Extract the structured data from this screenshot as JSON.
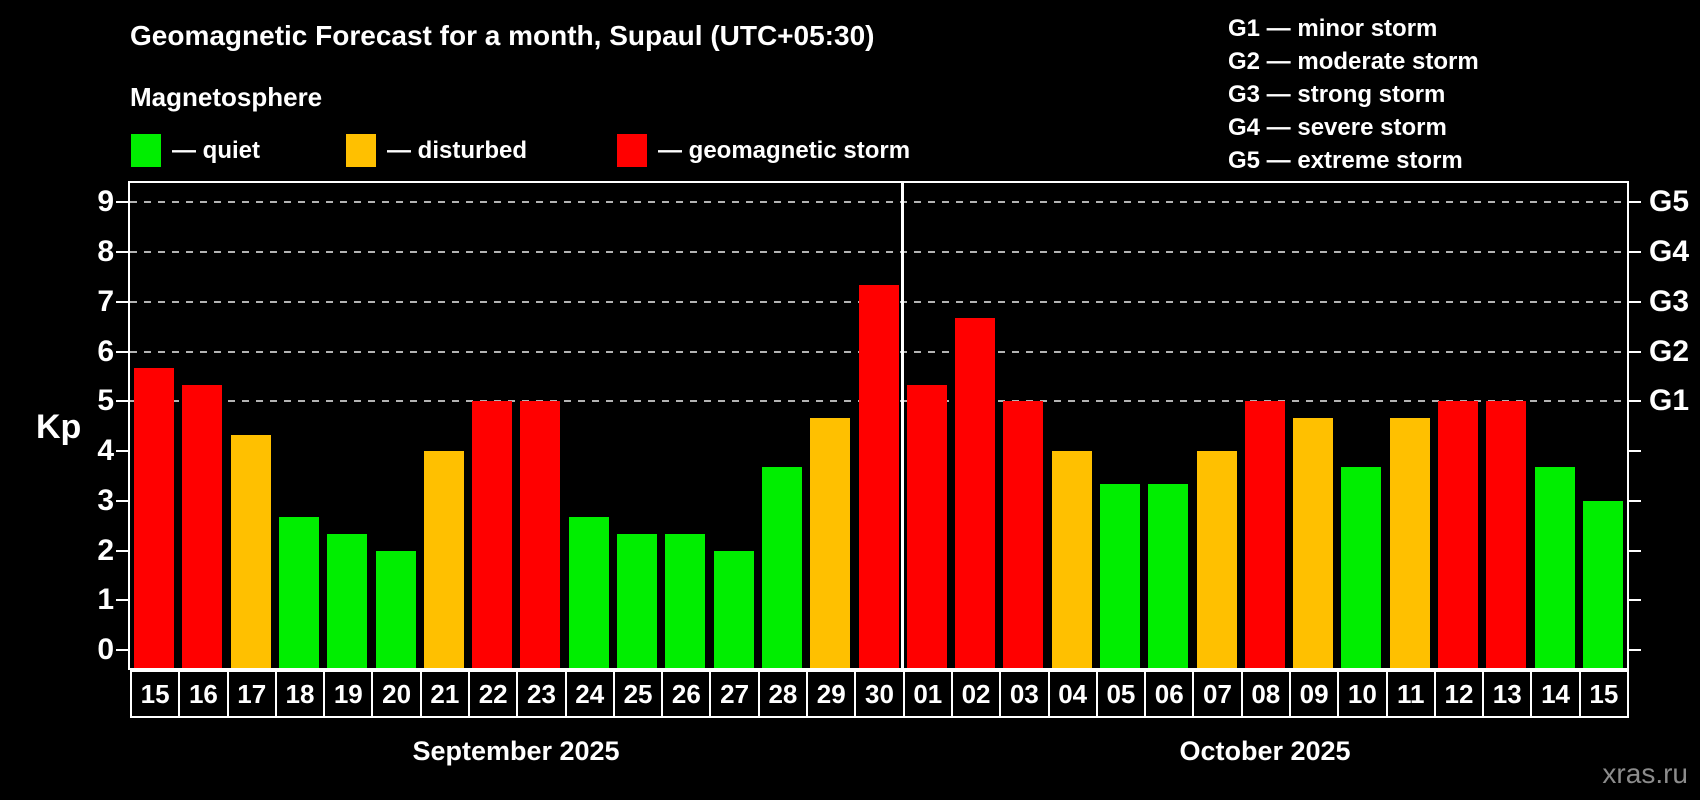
{
  "header": {
    "title": "Geomagnetic Forecast for a month, Supaul (UTC+05:30)",
    "subtitle": "Magnetosphere"
  },
  "legend": {
    "items": [
      {
        "key": "quiet",
        "label": "— quiet",
        "color": "#00ee00"
      },
      {
        "key": "disturbed",
        "label": "— disturbed",
        "color": "#ffc000"
      },
      {
        "key": "storm",
        "label": "— geomagnetic storm",
        "color": "#ff0000"
      }
    ]
  },
  "storm_scale": {
    "lines": [
      "G1 — minor storm",
      "G2 — moderate storm",
      "G3 — strong storm",
      "G4 — severe storm",
      "G5 — extreme storm"
    ]
  },
  "colors": {
    "quiet": "#00ee00",
    "disturbed": "#ffc000",
    "storm": "#ff0000",
    "background": "#000000",
    "axis": "#ffffff",
    "gridline": "#b3b3b3",
    "watermark": "#8c8c8c"
  },
  "chart_data": {
    "type": "bar",
    "title": "Geomagnetic Forecast for a month, Supaul (UTC+05:30)",
    "subtitle": "Magnetosphere",
    "ylabel": "Kp",
    "ylim": [
      0,
      9
    ],
    "yticks": [
      0,
      1,
      2,
      3,
      4,
      5,
      6,
      7,
      8,
      9
    ],
    "gridlines": [
      5,
      6,
      7,
      8,
      9
    ],
    "grid_style": "dashed horizontal lines only at storm levels G1-G5",
    "legend_position": "top-left",
    "right_axis": [
      {
        "label": "G5",
        "kp": 9
      },
      {
        "label": "G4",
        "kp": 8
      },
      {
        "label": "G3",
        "kp": 7
      },
      {
        "label": "G2",
        "kp": 6
      },
      {
        "label": "G1",
        "kp": 5
      }
    ],
    "months": [
      {
        "label": "September 2025",
        "start_index": 0,
        "days": 16
      },
      {
        "label": "October 2025",
        "start_index": 16,
        "days": 15
      }
    ],
    "categories": [
      "15",
      "16",
      "17",
      "18",
      "19",
      "20",
      "21",
      "22",
      "23",
      "24",
      "25",
      "26",
      "27",
      "28",
      "29",
      "30",
      "01",
      "02",
      "03",
      "04",
      "05",
      "06",
      "07",
      "08",
      "09",
      "10",
      "11",
      "12",
      "13",
      "14",
      "15"
    ],
    "values": [
      5.67,
      5.33,
      4.33,
      2.67,
      2.33,
      2.0,
      4.0,
      5.0,
      5.0,
      2.67,
      2.33,
      2.33,
      2.0,
      3.67,
      4.67,
      7.33,
      5.33,
      6.67,
      5.0,
      4.0,
      3.33,
      3.33,
      4.0,
      5.0,
      4.67,
      3.67,
      4.67,
      5.0,
      5.0,
      3.67,
      3.0
    ],
    "statuses": [
      "storm",
      "storm",
      "disturbed",
      "quiet",
      "quiet",
      "quiet",
      "disturbed",
      "storm",
      "storm",
      "quiet",
      "quiet",
      "quiet",
      "quiet",
      "quiet",
      "disturbed",
      "storm",
      "storm",
      "storm",
      "storm",
      "disturbed",
      "quiet",
      "quiet",
      "disturbed",
      "storm",
      "disturbed",
      "quiet",
      "disturbed",
      "storm",
      "storm",
      "quiet",
      "quiet"
    ]
  },
  "footer": {
    "watermark": "xras.ru"
  }
}
